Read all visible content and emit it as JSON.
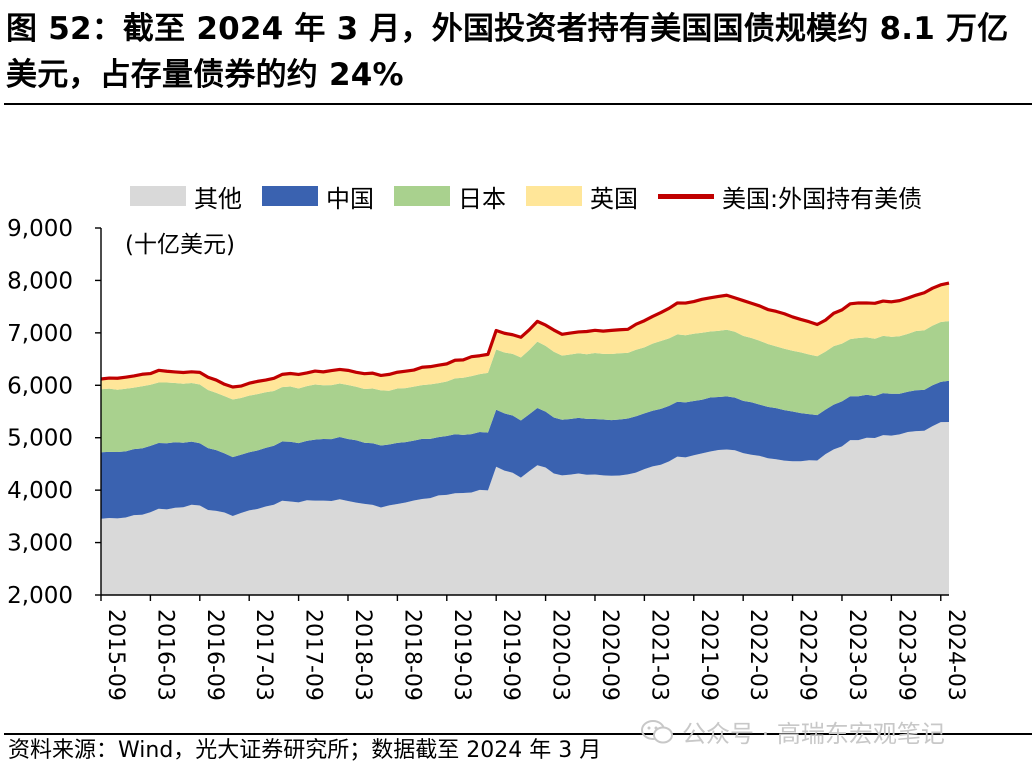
{
  "title": "图 52：截至 2024 年 3 月，外国投资者持有美国国债规模约 8.1 万亿美元，占存量债券的约 24%",
  "source": "资料来源：Wind，光大证券研究所；数据截至 2024 年 3 月",
  "watermark": "公众号 · 高瑞东宏观笔记",
  "chart_data": {
    "type": "area",
    "stacked": true,
    "unit_label": "(十亿美元)",
    "ylim": [
      2000,
      9000
    ],
    "yticks": [
      "2,000",
      "3,000",
      "4,000",
      "5,000",
      "6,000",
      "7,000",
      "8,000",
      "9,000"
    ],
    "ytick_values": [
      2000,
      3000,
      4000,
      5000,
      6000,
      7000,
      8000,
      9000
    ],
    "xtick_labels": [
      "2015-09",
      "2016-03",
      "2016-09",
      "2017-03",
      "2017-09",
      "2018-03",
      "2018-09",
      "2019-03",
      "2019-09",
      "2020-03",
      "2020-09",
      "2021-03",
      "2021-09",
      "2022-03",
      "2022-09",
      "2023-03",
      "2023-09",
      "2024-03"
    ],
    "legend": {
      "other": "其他",
      "china": "中国",
      "japan": "日本",
      "uk": "英国",
      "total": "美国:外国持有美债"
    },
    "colors": {
      "other": "#d9d9d9",
      "china": "#3a62b0",
      "japan": "#a9d18e",
      "uk": "#ffe699",
      "total": "#c00000"
    },
    "months": 103,
    "keypoints": {
      "total": [
        [
          0,
          6120
        ],
        [
          4,
          6180
        ],
        [
          7,
          6270
        ],
        [
          12,
          6240
        ],
        [
          16,
          5960
        ],
        [
          22,
          6190
        ],
        [
          29,
          6300
        ],
        [
          34,
          6190
        ],
        [
          41,
          6390
        ],
        [
          45,
          6530
        ],
        [
          47,
          6600
        ],
        [
          48,
          7040
        ],
        [
          51,
          6910
        ],
        [
          53,
          7230
        ],
        [
          56,
          6990
        ],
        [
          64,
          7070
        ],
        [
          70,
          7560
        ],
        [
          76,
          7700
        ],
        [
          83,
          7370
        ],
        [
          87,
          7150
        ],
        [
          91,
          7560
        ],
        [
          97,
          7600
        ],
        [
          103,
          7960
        ]
      ],
      "uk": [
        [
          0,
          210
        ],
        [
          12,
          230
        ],
        [
          22,
          250
        ],
        [
          34,
          300
        ],
        [
          45,
          360
        ],
        [
          48,
          370
        ],
        [
          53,
          390
        ],
        [
          64,
          450
        ],
        [
          70,
          590
        ],
        [
          76,
          660
        ],
        [
          83,
          660
        ],
        [
          87,
          600
        ],
        [
          91,
          660
        ],
        [
          97,
          680
        ],
        [
          103,
          730
        ]
      ],
      "japan": [
        [
          0,
          1210
        ],
        [
          8,
          1150
        ],
        [
          12,
          1110
        ],
        [
          16,
          1100
        ],
        [
          22,
          1050
        ],
        [
          29,
          1030
        ],
        [
          34,
          1040
        ],
        [
          41,
          1030
        ],
        [
          48,
          1140
        ],
        [
          53,
          1260
        ],
        [
          56,
          1230
        ],
        [
          64,
          1260
        ],
        [
          70,
          1290
        ],
        [
          76,
          1260
        ],
        [
          83,
          1180
        ],
        [
          87,
          1110
        ],
        [
          91,
          1100
        ],
        [
          97,
          1100
        ],
        [
          103,
          1150
        ]
      ],
      "china": [
        [
          0,
          1270
        ],
        [
          8,
          1260
        ],
        [
          12,
          1200
        ],
        [
          16,
          1120
        ],
        [
          22,
          1120
        ],
        [
          29,
          1180
        ],
        [
          34,
          1180
        ],
        [
          41,
          1120
        ],
        [
          45,
          1120
        ],
        [
          48,
          1100
        ],
        [
          53,
          1080
        ],
        [
          56,
          1070
        ],
        [
          64,
          1070
        ],
        [
          70,
          1050
        ],
        [
          76,
          1010
        ],
        [
          83,
          970
        ],
        [
          87,
          860
        ],
        [
          91,
          850
        ],
        [
          97,
          780
        ],
        [
          103,
          780
        ]
      ]
    }
  }
}
